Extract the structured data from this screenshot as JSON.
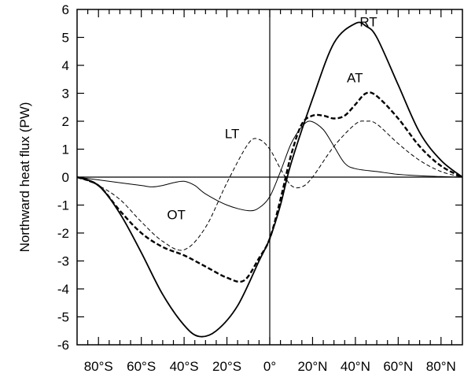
{
  "chart_data": {
    "type": "line",
    "title": "",
    "xlabel": "",
    "ylabel": "Northward heat flux (PW)",
    "xlim": [
      -90,
      90
    ],
    "ylim": [
      -6,
      6
    ],
    "grid": false,
    "x_ticks": [
      {
        "value": -80,
        "label": "80°S"
      },
      {
        "value": -60,
        "label": "60°S"
      },
      {
        "value": -40,
        "label": "40°S"
      },
      {
        "value": -20,
        "label": "20°S"
      },
      {
        "value": 0,
        "label": "0°"
      },
      {
        "value": 20,
        "label": "20°N"
      },
      {
        "value": 40,
        "label": "40°N"
      },
      {
        "value": 60,
        "label": "60°N"
      },
      {
        "value": 80,
        "label": "80°N"
      }
    ],
    "y_ticks": [
      {
        "value": 6,
        "label": "6"
      },
      {
        "value": 5,
        "label": "5"
      },
      {
        "value": 4,
        "label": "4"
      },
      {
        "value": 3,
        "label": "3"
      },
      {
        "value": 2,
        "label": "2"
      },
      {
        "value": 1,
        "label": "1"
      },
      {
        "value": 0,
        "label": "0"
      },
      {
        "value": -1,
        "label": "-1"
      },
      {
        "value": -2,
        "label": "-2"
      },
      {
        "value": -3,
        "label": "-3"
      },
      {
        "value": -4,
        "label": "-4"
      },
      {
        "value": -5,
        "label": "-5"
      },
      {
        "value": -6,
        "label": "-6"
      }
    ],
    "series": [
      {
        "name": "RT",
        "style": "solid-thick",
        "label_at": [
          42,
          5.4
        ],
        "x": [
          -90,
          -80,
          -70,
          -60,
          -50,
          -40,
          -33,
          -25,
          -15,
          -5,
          0,
          5,
          10,
          20,
          30,
          40,
          45,
          50,
          60,
          70,
          80,
          90
        ],
        "y": [
          0,
          -0.3,
          -1.3,
          -2.7,
          -4.2,
          -5.3,
          -5.7,
          -5.5,
          -4.6,
          -3.0,
          -2.2,
          -1.0,
          0.5,
          2.8,
          4.8,
          5.5,
          5.4,
          5.0,
          3.3,
          1.6,
          0.6,
          0
        ]
      },
      {
        "name": "AT",
        "style": "dashed-thick",
        "label_at": [
          36,
          3.4
        ],
        "x": [
          -90,
          -80,
          -70,
          -60,
          -50,
          -40,
          -30,
          -20,
          -12,
          -5,
          0,
          5,
          10,
          15,
          20,
          25,
          30,
          35,
          40,
          45,
          50,
          60,
          70,
          80,
          90
        ],
        "y": [
          0,
          -0.3,
          -1.2,
          -2.0,
          -2.5,
          -2.8,
          -3.2,
          -3.6,
          -3.7,
          -2.9,
          -2.2,
          -0.8,
          0.8,
          1.9,
          2.2,
          2.2,
          2.1,
          2.2,
          2.6,
          3.0,
          2.9,
          2.1,
          1.1,
          0.4,
          0
        ]
      },
      {
        "name": "LT",
        "style": "dashed-thin",
        "label_at": [
          -21,
          1.4
        ],
        "x": [
          -90,
          -80,
          -70,
          -60,
          -50,
          -40,
          -30,
          -20,
          -10,
          -5,
          0,
          5,
          10,
          15,
          20,
          30,
          40,
          45,
          50,
          60,
          70,
          80,
          90
        ],
        "y": [
          0,
          -0.3,
          -0.8,
          -1.6,
          -2.3,
          -2.6,
          -1.8,
          -0.2,
          1.2,
          1.35,
          1.0,
          0.3,
          -0.3,
          -0.35,
          0,
          1.1,
          1.9,
          2.0,
          1.9,
          1.2,
          0.6,
          0.2,
          0
        ]
      },
      {
        "name": "OT",
        "style": "solid-thin",
        "label_at": [
          -48,
          -1.5
        ],
        "x": [
          -90,
          -80,
          -70,
          -60,
          -55,
          -50,
          -45,
          -40,
          -35,
          -30,
          -20,
          -10,
          -5,
          0,
          5,
          10,
          15,
          19,
          25,
          30,
          35,
          40,
          50,
          60,
          70,
          80,
          90
        ],
        "y": [
          0,
          -0.1,
          -0.2,
          -0.3,
          -0.35,
          -0.3,
          -0.2,
          -0.15,
          -0.3,
          -0.6,
          -1.0,
          -1.2,
          -1.1,
          -0.7,
          0.2,
          1.2,
          1.8,
          2.0,
          1.7,
          1.1,
          0.5,
          0.3,
          0.2,
          0.1,
          0.05,
          0.02,
          0
        ]
      }
    ]
  }
}
